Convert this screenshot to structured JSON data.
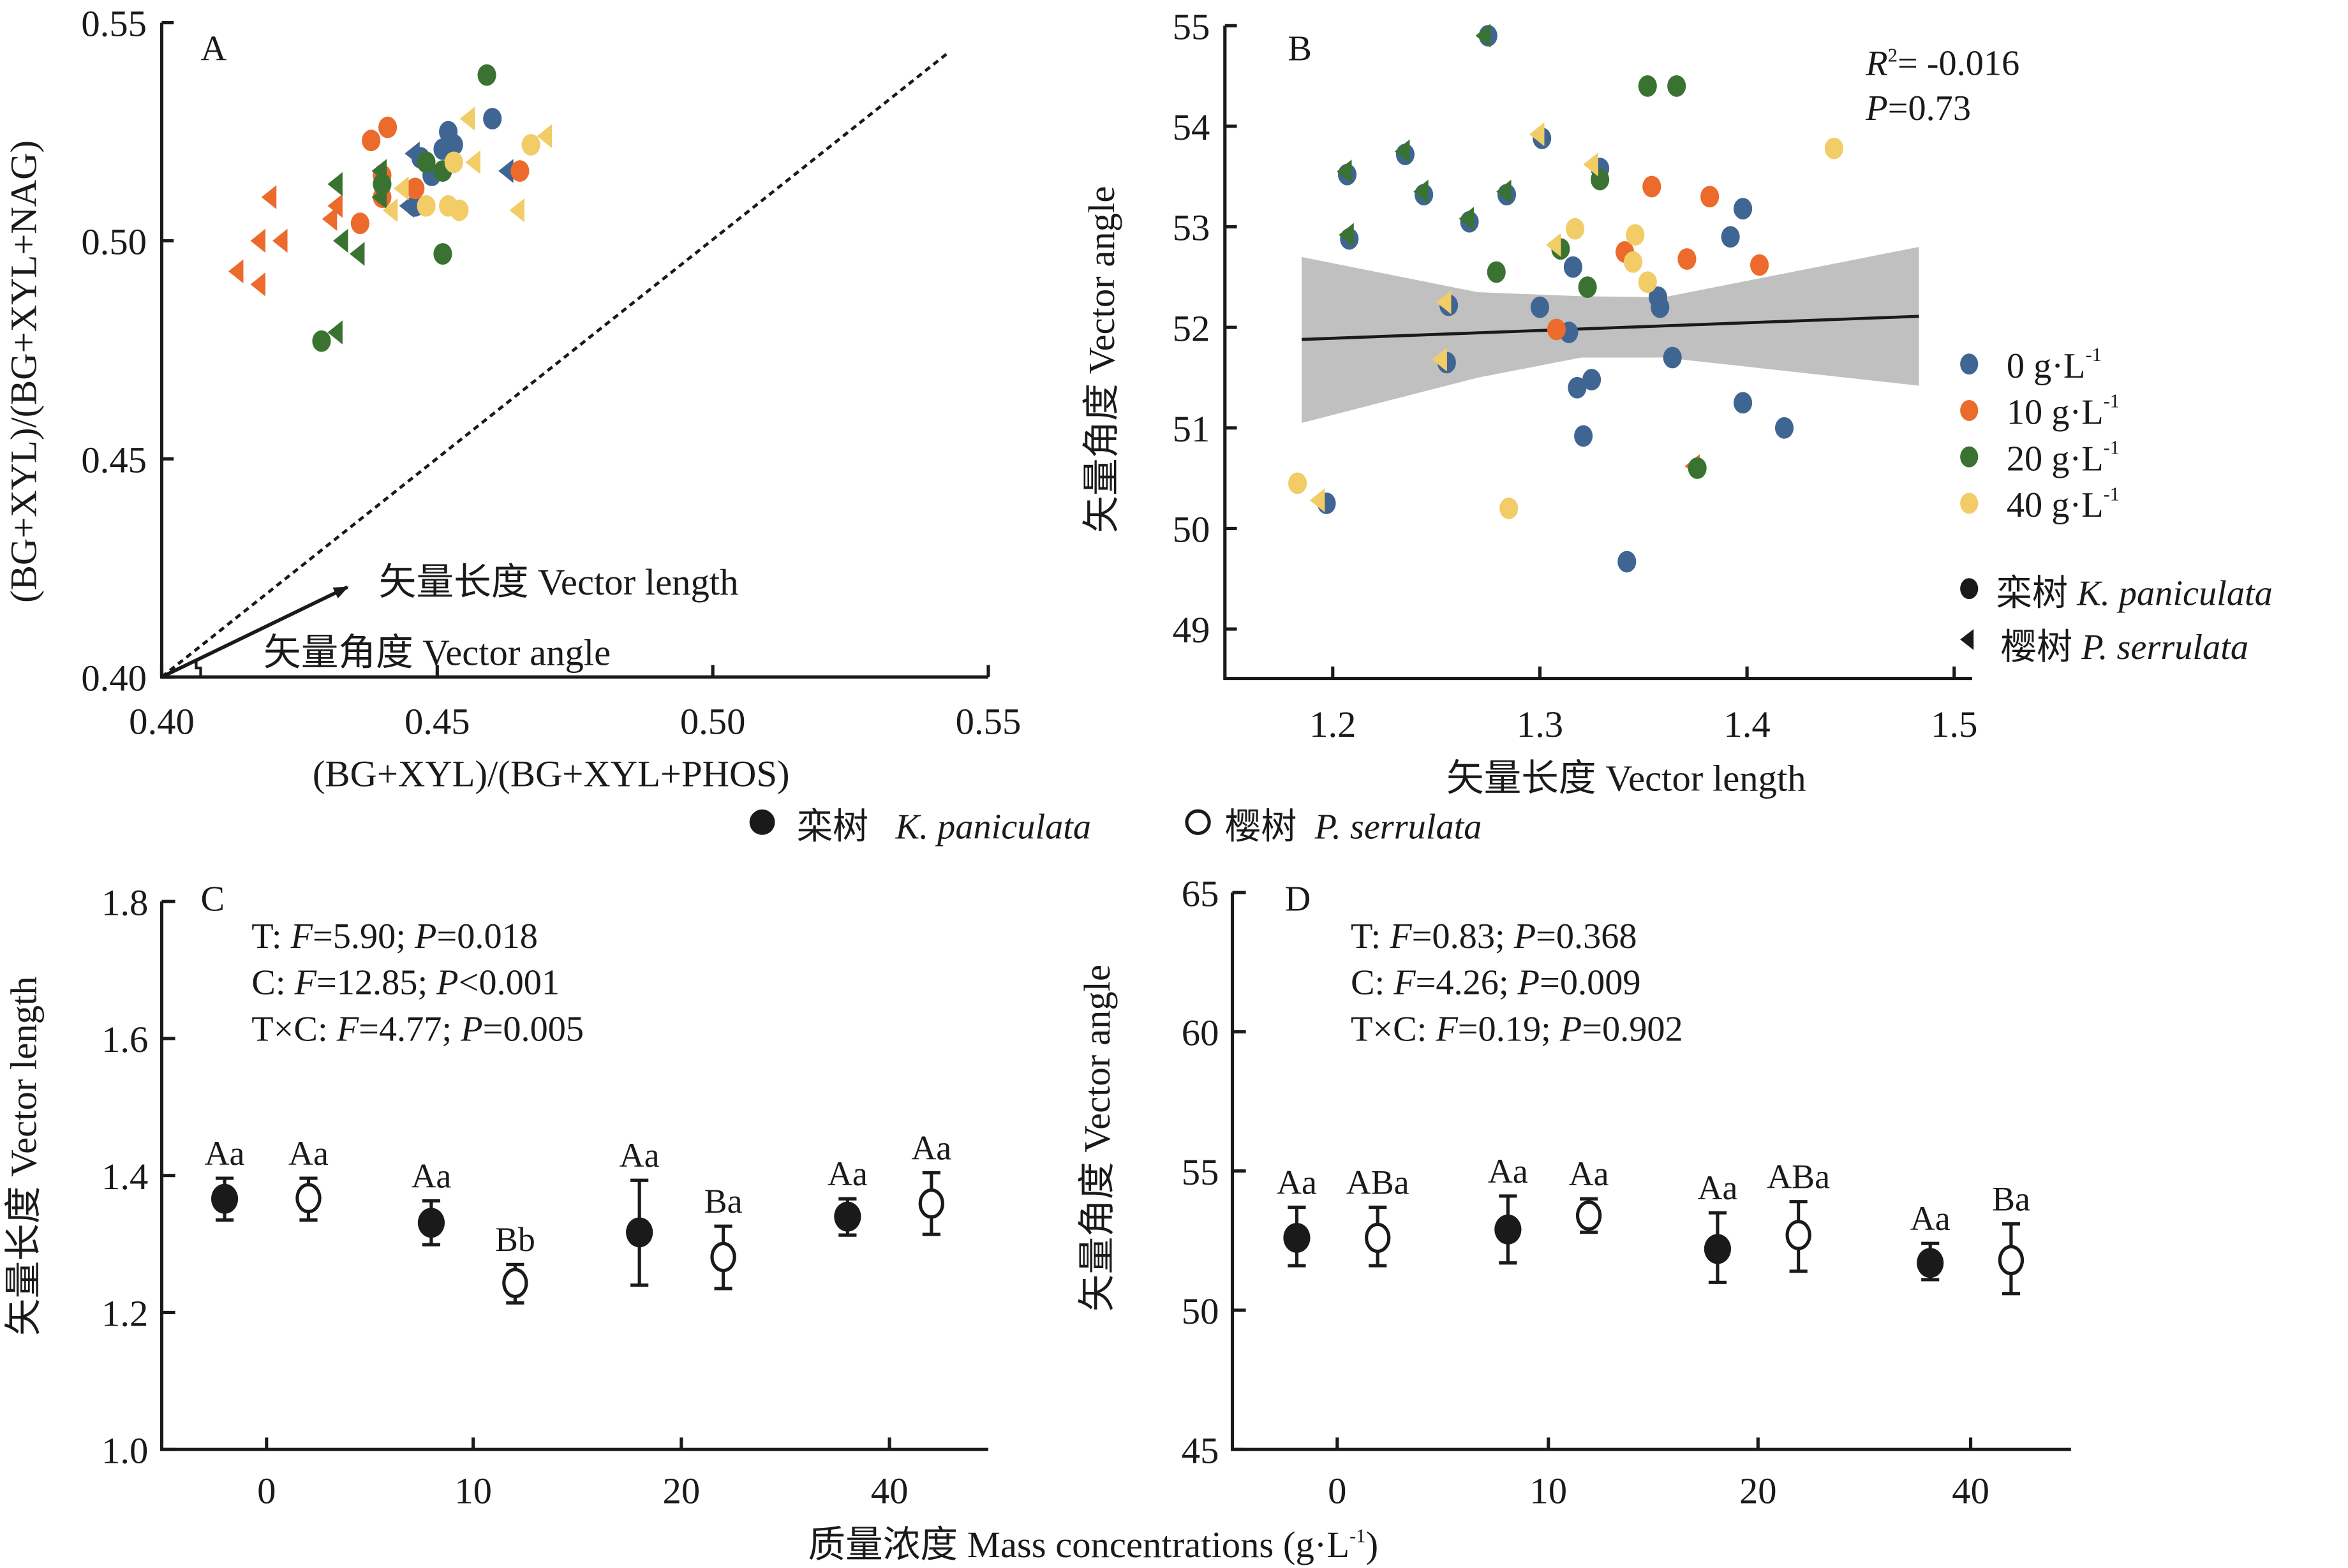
{
  "figure": {
    "colors": {
      "c0": "#3f6593",
      "c10": "#ec6a2c",
      "c20": "#3a7331",
      "c40": "#f2cc66",
      "ink": "#1a1a1a",
      "band": "#c0c0c0"
    },
    "top_legend": {
      "filled": {
        "cn": "栾树",
        "latin": "K. paniculata"
      },
      "open": {
        "cn": "樱树",
        "latin": "P. serrulata"
      }
    },
    "shared_xlabel": {
      "cn": "质量浓度",
      "en": "Mass concentrations",
      "unit": "(g·L",
      "unit_sup": "-1",
      "unit_close": ")"
    }
  },
  "chart_data": [
    {
      "panel": "A",
      "type": "scatter",
      "xlabel": "(BG+XYL)/(BG+XYL+PHOS)",
      "ylabel": "(BG+XYL)/(BG+XYL+NAG)",
      "xlim": [
        0.4,
        0.55
      ],
      "ylim": [
        0.4,
        0.55
      ],
      "xticks": [
        "0.40",
        "0.45",
        "0.50",
        "0.55"
      ],
      "yticks": [
        "0.40",
        "0.45",
        "0.50",
        "0.55"
      ],
      "reference_line": "1:1 dashed",
      "annotations": {
        "length": "矢量长度 Vector length",
        "angle": "矢量角度 Vector angle"
      },
      "series": [
        {
          "name": "0 g·L-1",
          "color_key": "c0",
          "points": [
            {
              "x": 0.452,
              "y": 0.525,
              "m": "c"
            },
            {
              "x": 0.46,
              "y": 0.528,
              "m": "c"
            },
            {
              "x": 0.453,
              "y": 0.522,
              "m": "c"
            },
            {
              "x": 0.447,
              "y": 0.519,
              "m": "c"
            },
            {
              "x": 0.449,
              "y": 0.515,
              "m": "c"
            },
            {
              "x": 0.446,
              "y": 0.508,
              "m": "c"
            },
            {
              "x": 0.451,
              "y": 0.521,
              "m": "c"
            },
            {
              "x": 0.463,
              "y": 0.516,
              "m": "t"
            },
            {
              "x": 0.446,
              "y": 0.52,
              "m": "t"
            },
            {
              "x": 0.445,
              "y": 0.508,
              "m": "t"
            }
          ]
        },
        {
          "name": "10 g·L-1",
          "color_key": "c10",
          "points": [
            {
              "x": 0.441,
              "y": 0.526,
              "m": "c"
            },
            {
              "x": 0.438,
              "y": 0.523,
              "m": "c"
            },
            {
              "x": 0.44,
              "y": 0.515,
              "m": "c"
            },
            {
              "x": 0.446,
              "y": 0.512,
              "m": "c"
            },
            {
              "x": 0.44,
              "y": 0.51,
              "m": "c"
            },
            {
              "x": 0.436,
              "y": 0.504,
              "m": "c"
            },
            {
              "x": 0.465,
              "y": 0.516,
              "m": "c"
            },
            {
              "x": 0.42,
              "y": 0.51,
              "m": "t"
            },
            {
              "x": 0.432,
              "y": 0.508,
              "m": "t"
            },
            {
              "x": 0.431,
              "y": 0.505,
              "m": "t"
            },
            {
              "x": 0.422,
              "y": 0.5,
              "m": "t"
            },
            {
              "x": 0.418,
              "y": 0.5,
              "m": "t"
            },
            {
              "x": 0.414,
              "y": 0.493,
              "m": "t"
            },
            {
              "x": 0.418,
              "y": 0.49,
              "m": "t"
            }
          ]
        },
        {
          "name": "20 g·L-1",
          "color_key": "c20",
          "points": [
            {
              "x": 0.459,
              "y": 0.538,
              "m": "c"
            },
            {
              "x": 0.448,
              "y": 0.518,
              "m": "c"
            },
            {
              "x": 0.451,
              "y": 0.516,
              "m": "c"
            },
            {
              "x": 0.44,
              "y": 0.513,
              "m": "c"
            },
            {
              "x": 0.451,
              "y": 0.497,
              "m": "c"
            },
            {
              "x": 0.429,
              "y": 0.477,
              "m": "c"
            },
            {
              "x": 0.44,
              "y": 0.516,
              "m": "t"
            },
            {
              "x": 0.432,
              "y": 0.513,
              "m": "t"
            },
            {
              "x": 0.44,
              "y": 0.51,
              "m": "t"
            },
            {
              "x": 0.433,
              "y": 0.5,
              "m": "t"
            },
            {
              "x": 0.436,
              "y": 0.497,
              "m": "t"
            },
            {
              "x": 0.432,
              "y": 0.479,
              "m": "t"
            }
          ]
        },
        {
          "name": "40 g·L-1",
          "color_key": "c40",
          "points": [
            {
              "x": 0.453,
              "y": 0.518,
              "m": "c"
            },
            {
              "x": 0.448,
              "y": 0.508,
              "m": "c"
            },
            {
              "x": 0.452,
              "y": 0.508,
              "m": "c"
            },
            {
              "x": 0.454,
              "y": 0.507,
              "m": "c"
            },
            {
              "x": 0.467,
              "y": 0.522,
              "m": "c"
            },
            {
              "x": 0.456,
              "y": 0.528,
              "m": "t"
            },
            {
              "x": 0.47,
              "y": 0.524,
              "m": "t"
            },
            {
              "x": 0.457,
              "y": 0.518,
              "m": "t"
            },
            {
              "x": 0.444,
              "y": 0.512,
              "m": "t"
            },
            {
              "x": 0.442,
              "y": 0.507,
              "m": "t"
            },
            {
              "x": 0.465,
              "y": 0.507,
              "m": "t"
            }
          ]
        }
      ]
    },
    {
      "panel": "B",
      "type": "scatter",
      "xlabel": "矢量长度 Vector length",
      "ylabel": "矢量角度 Vector angle",
      "xlim": [
        1.15,
        1.55
      ],
      "ylim": [
        48.5,
        55
      ],
      "xticks": [
        "1.2",
        "1.3",
        "1.4",
        "1.5"
      ],
      "yticks": [
        "49",
        "50",
        "51",
        "52",
        "53",
        "54",
        "55"
      ],
      "stats": {
        "r2_label": "R",
        "r2_sup": "2",
        "r2_value": "= -0.016",
        "p_label": "P",
        "p_value": "=0.73"
      },
      "fit": {
        "x": [
          1.185,
          1.483
        ],
        "y": [
          51.88,
          52.11
        ],
        "ci_upper": [
          52.7,
          52.35,
          52.31,
          52.3,
          52.8
        ],
        "ci_lower": [
          51.05,
          51.5,
          51.7,
          51.7,
          51.42
        ],
        "ci_x": [
          1.185,
          1.27,
          1.32,
          1.36,
          1.483
        ]
      },
      "legend": {
        "conc": [
          "0 g·L",
          "10 g·L",
          "20 g·L",
          "40 g·L"
        ],
        "conc_sup": "-1",
        "species": [
          {
            "cn": "栾树",
            "latin": "K. paniculata"
          },
          {
            "cn": "樱树",
            "latin": "P. serrulata"
          }
        ]
      },
      "series": [
        {
          "name": "0 g·L-1",
          "color_key": "c0",
          "points": [
            {
              "x": 1.275,
              "y": 54.9,
              "m": "c"
            },
            {
              "x": 1.301,
              "y": 53.88,
              "m": "c"
            },
            {
              "x": 1.207,
              "y": 53.52,
              "m": "c"
            },
            {
              "x": 1.235,
              "y": 53.72,
              "m": "c"
            },
            {
              "x": 1.244,
              "y": 53.32,
              "m": "c"
            },
            {
              "x": 1.284,
              "y": 53.32,
              "m": "c"
            },
            {
              "x": 1.266,
              "y": 53.05,
              "m": "c"
            },
            {
              "x": 1.208,
              "y": 52.88,
              "m": "c"
            },
            {
              "x": 1.329,
              "y": 53.58,
              "m": "c"
            },
            {
              "x": 1.398,
              "y": 53.18,
              "m": "c"
            },
            {
              "x": 1.392,
              "y": 52.9,
              "m": "c"
            },
            {
              "x": 1.316,
              "y": 52.6,
              "m": "c"
            },
            {
              "x": 1.3,
              "y": 52.2,
              "m": "c"
            },
            {
              "x": 1.357,
              "y": 52.3,
              "m": "c"
            },
            {
              "x": 1.358,
              "y": 52.2,
              "m": "c"
            },
            {
              "x": 1.314,
              "y": 51.95,
              "m": "c"
            },
            {
              "x": 1.256,
              "y": 52.22,
              "m": "c"
            },
            {
              "x": 1.255,
              "y": 51.65,
              "m": "c"
            },
            {
              "x": 1.364,
              "y": 51.7,
              "m": "c"
            },
            {
              "x": 1.325,
              "y": 51.48,
              "m": "c"
            },
            {
              "x": 1.318,
              "y": 51.4,
              "m": "c"
            },
            {
              "x": 1.398,
              "y": 51.25,
              "m": "c"
            },
            {
              "x": 1.418,
              "y": 51.0,
              "m": "c"
            },
            {
              "x": 1.321,
              "y": 50.92,
              "m": "c"
            },
            {
              "x": 1.197,
              "y": 50.25,
              "m": "c"
            },
            {
              "x": 1.342,
              "y": 49.67,
              "m": "c"
            }
          ]
        },
        {
          "name": "10 g·L-1",
          "color_key": "c10",
          "points": [
            {
              "x": 1.354,
              "y": 53.4,
              "m": "c"
            },
            {
              "x": 1.382,
              "y": 53.3,
              "m": "c"
            },
            {
              "x": 1.341,
              "y": 52.75,
              "m": "c"
            },
            {
              "x": 1.371,
              "y": 52.68,
              "m": "c"
            },
            {
              "x": 1.406,
              "y": 52.62,
              "m": "c"
            },
            {
              "x": 1.308,
              "y": 51.98,
              "m": "c"
            },
            {
              "x": 1.375,
              "y": 50.62,
              "m": "t"
            }
          ]
        },
        {
          "name": "20 g·L-1",
          "color_key": "c20",
          "points": [
            {
              "x": 1.352,
              "y": 54.4,
              "m": "c"
            },
            {
              "x": 1.366,
              "y": 54.4,
              "m": "c"
            },
            {
              "x": 1.329,
              "y": 53.47,
              "m": "c"
            },
            {
              "x": 1.279,
              "y": 52.55,
              "m": "c"
            },
            {
              "x": 1.323,
              "y": 52.4,
              "m": "c"
            },
            {
              "x": 1.31,
              "y": 52.78,
              "m": "c"
            },
            {
              "x": 1.376,
              "y": 50.6,
              "m": "c"
            },
            {
              "x": 1.274,
              "y": 54.9,
              "m": "t"
            },
            {
              "x": 1.207,
              "y": 53.55,
              "m": "t"
            },
            {
              "x": 1.235,
              "y": 53.75,
              "m": "t"
            },
            {
              "x": 1.244,
              "y": 53.35,
              "m": "t"
            },
            {
              "x": 1.284,
              "y": 53.35,
              "m": "t"
            },
            {
              "x": 1.266,
              "y": 53.08,
              "m": "t"
            },
            {
              "x": 1.208,
              "y": 52.92,
              "m": "t"
            }
          ]
        },
        {
          "name": "40 g·L-1",
          "color_key": "c40",
          "points": [
            {
              "x": 1.442,
              "y": 53.78,
              "m": "c"
            },
            {
              "x": 1.317,
              "y": 52.98,
              "m": "c"
            },
            {
              "x": 1.346,
              "y": 52.92,
              "m": "c"
            },
            {
              "x": 1.345,
              "y": 52.65,
              "m": "c"
            },
            {
              "x": 1.352,
              "y": 52.45,
              "m": "c"
            },
            {
              "x": 1.183,
              "y": 50.45,
              "m": "c"
            },
            {
              "x": 1.285,
              "y": 50.2,
              "m": "c"
            },
            {
              "x": 1.3,
              "y": 53.92,
              "m": "t"
            },
            {
              "x": 1.326,
              "y": 53.62,
              "m": "t"
            },
            {
              "x": 1.308,
              "y": 52.82,
              "m": "t"
            },
            {
              "x": 1.255,
              "y": 52.25,
              "m": "t"
            },
            {
              "x": 1.253,
              "y": 51.68,
              "m": "t"
            },
            {
              "x": 1.194,
              "y": 50.28,
              "m": "t"
            }
          ]
        }
      ]
    },
    {
      "panel": "C",
      "type": "scatter",
      "subtype": "mean with error bars",
      "ylabel": "矢量长度 Vector length",
      "ylim": [
        1.0,
        1.8
      ],
      "yticks": [
        "1.0",
        "1.2",
        "1.4",
        "1.6",
        "1.8"
      ],
      "categories": [
        "0",
        "10",
        "20",
        "40"
      ],
      "stats": [
        {
          "pre": "T: ",
          "f": "=5.90; ",
          "p": "=0.018"
        },
        {
          "pre": "C: ",
          "f": "=12.85; ",
          "p": "<0.001"
        },
        {
          "pre": "T×C: ",
          "f": "=4.77; ",
          "p": "=0.005"
        }
      ],
      "series": [
        {
          "name": "栾树 K. paniculata",
          "marker": "filled",
          "values": [
            1.366,
            1.331,
            1.317,
            1.34
          ],
          "err_hi": [
            1.396,
            1.363,
            1.393,
            1.366
          ],
          "err_lo": [
            1.335,
            1.299,
            1.24,
            1.313
          ],
          "labels": [
            "Aa",
            "Aa",
            "Aa",
            "Aa"
          ]
        },
        {
          "name": "樱树 P. serrulata",
          "marker": "open",
          "values": [
            1.367,
            1.243,
            1.281,
            1.359
          ],
          "err_hi": [
            1.396,
            1.27,
            1.326,
            1.404
          ],
          "err_lo": [
            1.335,
            1.214,
            1.235,
            1.314
          ],
          "labels": [
            "Aa",
            "Bb",
            "Ba",
            "Aa"
          ]
        }
      ]
    },
    {
      "panel": "D",
      "type": "scatter",
      "subtype": "mean with error bars",
      "ylabel": "矢量角度 Vector angle",
      "ylim": [
        45,
        65
      ],
      "yticks": [
        "45",
        "50",
        "55",
        "60",
        "65"
      ],
      "categories": [
        "0",
        "10",
        "20",
        "40"
      ],
      "stats": [
        {
          "pre": "T: ",
          "f": "=0.83; ",
          "p": "=0.368"
        },
        {
          "pre": "C: ",
          "f": "=4.26; ",
          "p": "=0.009"
        },
        {
          "pre": "T×C: ",
          "f": "=0.19; ",
          "p": "=0.902"
        }
      ],
      "series": [
        {
          "name": "栾树 K. paniculata",
          "marker": "filled",
          "values": [
            52.6,
            52.9,
            52.2,
            51.7
          ],
          "err_hi": [
            53.7,
            54.1,
            53.5,
            52.4
          ],
          "err_lo": [
            51.6,
            51.7,
            51.0,
            51.1
          ],
          "labels": [
            "Aa",
            "Aa",
            "Aa",
            "Aa"
          ]
        },
        {
          "name": "樱树 P. serrulata",
          "marker": "open",
          "values": [
            52.6,
            53.4,
            52.7,
            51.8
          ],
          "err_hi": [
            53.7,
            54.0,
            53.9,
            53.1
          ],
          "err_lo": [
            51.6,
            52.8,
            51.4,
            50.6
          ],
          "labels": [
            "ABa",
            "Aa",
            "ABa",
            "Ba"
          ]
        }
      ]
    }
  ]
}
